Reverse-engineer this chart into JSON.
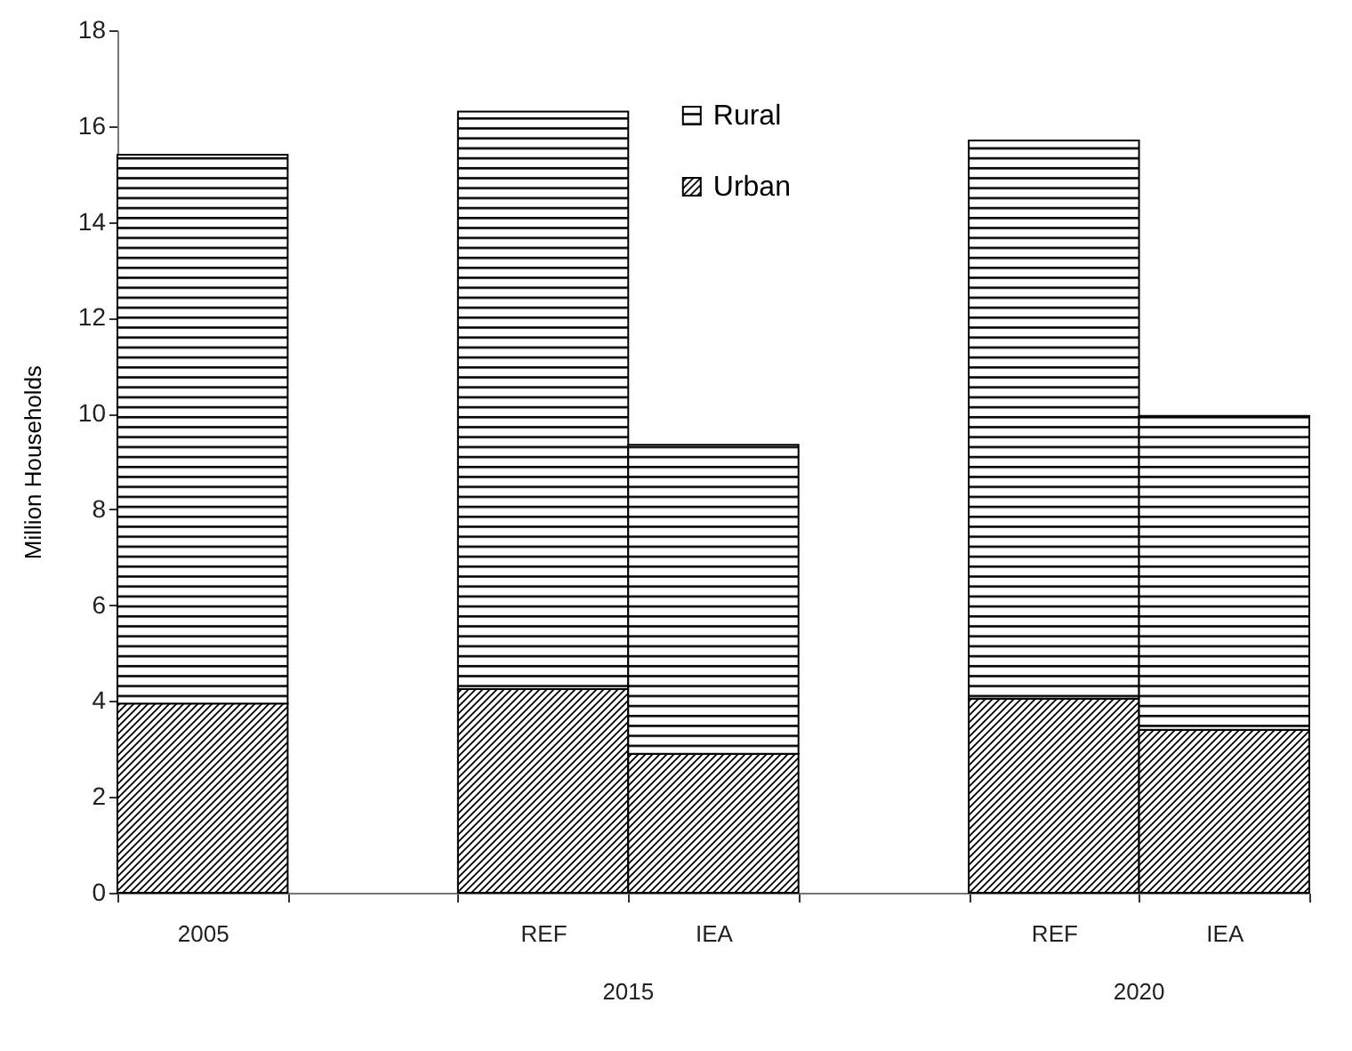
{
  "chart_data": {
    "type": "bar",
    "stacked": true,
    "ylabel": "Million Households",
    "categories": [
      "2005",
      null,
      "REF",
      "IEA",
      null,
      "REF",
      "IEA"
    ],
    "series": [
      {
        "name": "Urban",
        "color": "#000000",
        "values": [
          3.95,
          null,
          4.25,
          2.9,
          null,
          4.05,
          3.4
        ]
      },
      {
        "name": "Rural",
        "color": "#000000",
        "values": [
          11.45,
          null,
          12.05,
          6.45,
          null,
          11.65,
          6.55
        ]
      }
    ],
    "ylim": [
      0,
      18
    ],
    "yticks": [
      0,
      2,
      4,
      6,
      8,
      10,
      12,
      14,
      16,
      18
    ],
    "grid": false,
    "legend": "top",
    "annotations": [
      "2015",
      "2020"
    ]
  }
}
